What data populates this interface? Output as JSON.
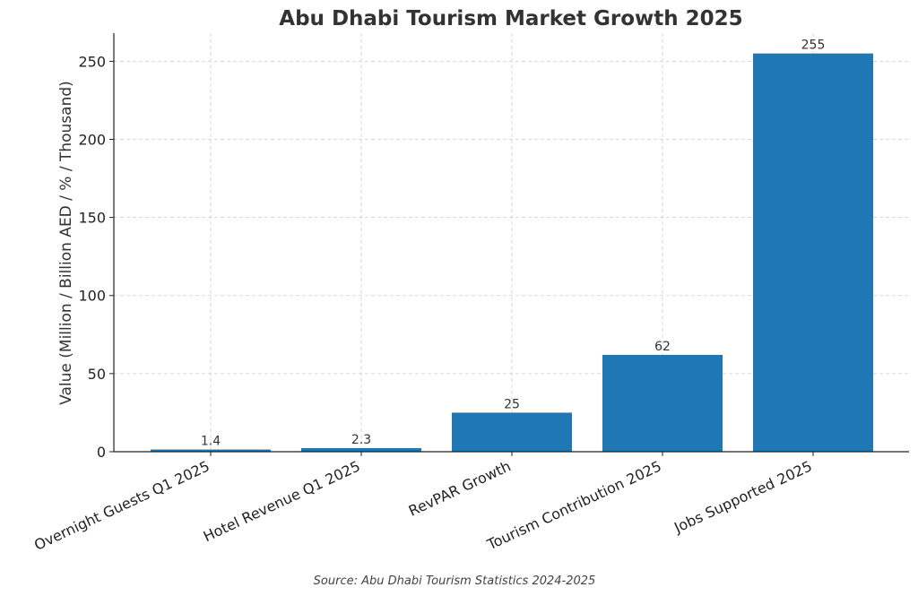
{
  "chart_data": {
    "type": "bar",
    "title": "Abu Dhabi Tourism Market Growth 2025",
    "xlabel": "",
    "ylabel": "Value (Million / Billion AED / % / Thousand)",
    "categories": [
      "Overnight Guests Q1 2025",
      "Hotel Revenue Q1 2025",
      "RevPAR Growth",
      "Tourism Contribution 2025",
      "Jobs Supported 2025"
    ],
    "values": [
      1.4,
      2.3,
      25,
      62,
      255
    ],
    "data_labels": [
      "1.4",
      "2.3",
      "25",
      "62",
      "255"
    ],
    "ylim": [
      0,
      268
    ],
    "yticks": [
      0,
      50,
      100,
      150,
      200,
      250
    ],
    "grid": true,
    "bar_color": "#1f77b4",
    "source": "Source: Abu Dhabi Tourism Statistics 2024-2025"
  }
}
